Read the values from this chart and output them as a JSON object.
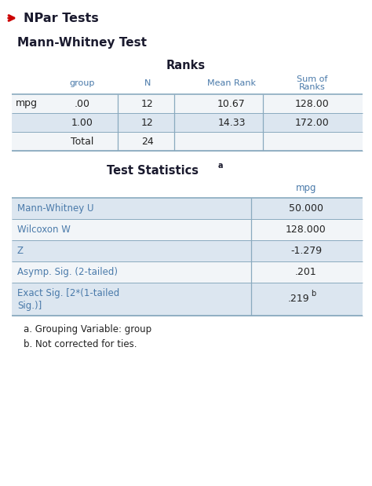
{
  "title_header": "NPar Tests",
  "subtitle": "Mann-Whitney Test",
  "ranks_title": "Ranks",
  "ranks_row_label": "mpg",
  "ranks_rows": [
    [
      ".00",
      "12",
      "10.67",
      "128.00"
    ],
    [
      "1.00",
      "12",
      "14.33",
      "172.00"
    ],
    [
      "Total",
      "24",
      "",
      ""
    ]
  ],
  "stats_title": "Test Statistics",
  "stats_col_header": "mpg",
  "stats_rows": [
    [
      "Mann-Whitney U",
      "50.000"
    ],
    [
      "Wilcoxon W",
      "128.000"
    ],
    [
      "Z",
      "-1.279"
    ],
    [
      "Asymp. Sig. (2-tailed)",
      ".201"
    ],
    [
      "Exact Sig. [2*(1-tailed\nSig.)]",
      ".219"
    ]
  ],
  "footnotes": [
    "a. Grouping Variable: group",
    "b. Not corrected for ties."
  ],
  "arrow_color": "#cc0000",
  "header_text_color": "#1a1a2e",
  "table_header_color": "#4a7aaa",
  "row_alt_color": "#dce6f0",
  "row_white_color": "#f2f5f8",
  "border_color": "#8aaabf",
  "background_color": "#ffffff",
  "text_dark": "#222222",
  "text_blue": "#4a7aaa"
}
